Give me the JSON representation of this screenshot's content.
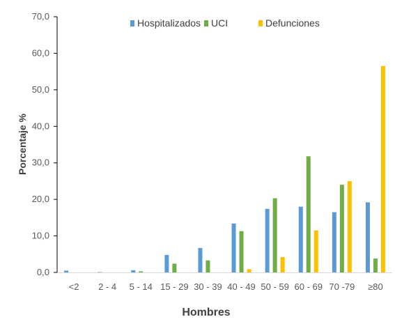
{
  "chart_data": {
    "type": "bar",
    "categories": [
      "<2",
      "2 - 4",
      "5 - 14",
      "15 - 29",
      "30 - 39",
      "40 - 49",
      "50 - 59",
      "60 - 69",
      "70 -79",
      "≥80"
    ],
    "series": [
      {
        "name": "Hospitalizados",
        "color": "#5B9BD5",
        "values": [
          0.5,
          0.1,
          0.6,
          4.8,
          6.7,
          13.4,
          17.4,
          18.0,
          16.5,
          19.2
        ]
      },
      {
        "name": "UCI",
        "color": "#70AD47",
        "values": [
          0.0,
          0.0,
          0.3,
          2.4,
          3.3,
          11.3,
          20.3,
          31.8,
          24.0,
          3.8
        ]
      },
      {
        "name": "Defunciones",
        "color": "#FFC000",
        "values": [
          0.0,
          0.0,
          0.0,
          0.0,
          0.0,
          0.9,
          4.2,
          11.5,
          25.0,
          56.5
        ]
      }
    ],
    "xlabel": "Hombres",
    "ylabel": "Porcentaje %",
    "ylim": [
      0,
      70
    ],
    "yticks": [
      "0,0",
      "10,0",
      "20,0",
      "30,0",
      "40,0",
      "50,0",
      "60,0",
      "70,0"
    ],
    "grid": false,
    "legend_position": "top-center"
  }
}
